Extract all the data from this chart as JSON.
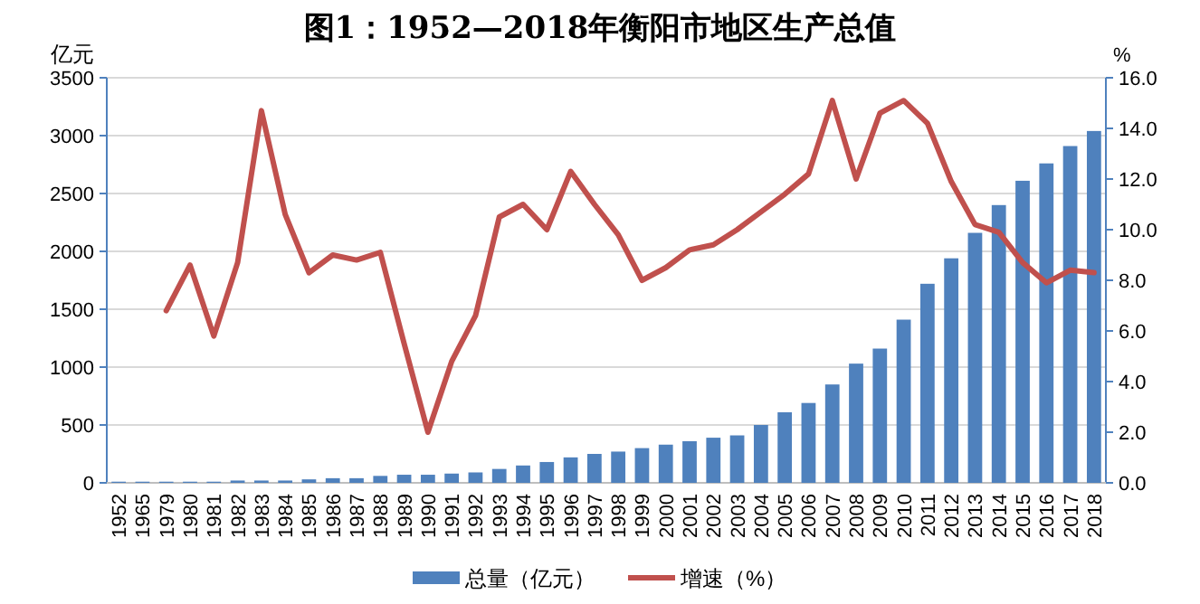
{
  "chart_data": {
    "type": "bar",
    "title": "图1：1952—2018年衡阳市地区生产总值",
    "ylabel": "亿元",
    "y2label": "%",
    "categories": [
      "1952",
      "1965",
      "1979",
      "1980",
      "1981",
      "1982",
      "1983",
      "1984",
      "1985",
      "1986",
      "1987",
      "1988",
      "1989",
      "1990",
      "1991",
      "1992",
      "1993",
      "1994",
      "1995",
      "1996",
      "1997",
      "1998",
      "1999",
      "2000",
      "2001",
      "2002",
      "2003",
      "2004",
      "2005",
      "2006",
      "2007",
      "2008",
      "2009",
      "2010",
      "2011",
      "2012",
      "2013",
      "2014",
      "2015",
      "2016",
      "2017",
      "2018"
    ],
    "series": [
      {
        "name": "总量（亿元）",
        "color": "#4f81bd",
        "values": [
          10,
          10,
          10,
          10,
          10,
          20,
          20,
          20,
          30,
          40,
          40,
          60,
          70,
          70,
          80,
          90,
          120,
          150,
          180,
          220,
          250,
          270,
          300,
          330,
          360,
          390,
          410,
          500,
          610,
          690,
          850,
          1030,
          1160,
          1410,
          1720,
          1940,
          2160,
          2400,
          2610,
          2760,
          2910,
          3040
        ]
      },
      {
        "name": "增速（%）",
        "type": "line",
        "axis": "y2",
        "color": "#c0504d",
        "values": [
          null,
          null,
          6.8,
          8.6,
          5.8,
          8.7,
          14.7,
          10.6,
          8.3,
          9.0,
          8.8,
          9.1,
          5.5,
          2.0,
          4.8,
          6.6,
          10.5,
          11.0,
          10.0,
          12.3,
          11.0,
          9.8,
          8.0,
          8.5,
          9.2,
          9.4,
          10.0,
          10.7,
          11.4,
          12.2,
          15.1,
          12.0,
          14.6,
          15.1,
          14.2,
          11.9,
          10.2,
          9.9,
          8.7,
          7.9,
          8.4,
          8.3
        ]
      }
    ],
    "ylim": [
      0,
      3500
    ],
    "yticks": [
      0,
      500,
      1000,
      1500,
      2000,
      2500,
      3000,
      3500
    ],
    "y2lim": [
      0,
      16
    ],
    "y2ticks": [
      {
        "value": 0,
        "label": "0.0"
      },
      {
        "value": 2,
        "label": "2.0"
      },
      {
        "value": 4,
        "label": "4.0"
      },
      {
        "value": 6,
        "label": "6.0"
      },
      {
        "value": 8,
        "label": "8.0"
      },
      {
        "value": 10,
        "label": "10.0"
      },
      {
        "value": 12,
        "label": "12.0"
      },
      {
        "value": 14,
        "label": "14.0"
      },
      {
        "value": 16,
        "label": "16.0"
      }
    ],
    "grid": "y",
    "legend": "bottom"
  }
}
